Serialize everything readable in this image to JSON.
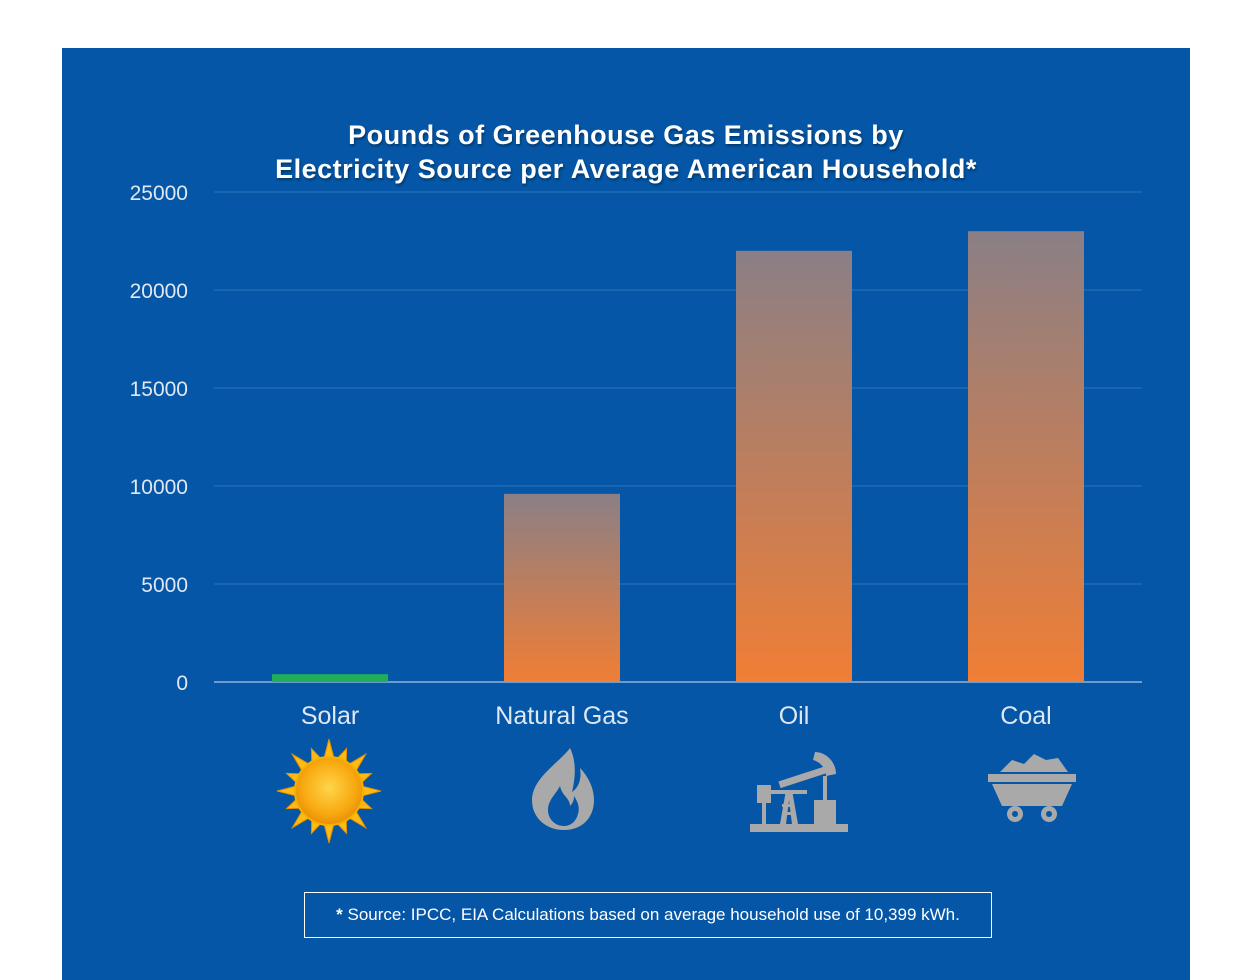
{
  "chart_data": {
    "type": "bar",
    "title_lines": [
      "Pounds of Greenhouse Gas Emissions by",
      "Electricity Source per Average American Household*"
    ],
    "categories": [
      "Solar",
      "Natural Gas",
      "Oil",
      "Coal"
    ],
    "values": [
      400,
      9600,
      22000,
      23000
    ],
    "ylim": [
      0,
      25000
    ],
    "yticks": [
      "0",
      "5000",
      "10000",
      "15000",
      "20000",
      "25000"
    ],
    "ytick_values": [
      0,
      5000,
      10000,
      15000,
      20000,
      25000
    ],
    "grid": true,
    "colors": {
      "background": "#0556a6",
      "solar_bar": "#1fae5b",
      "bar_top": "#8a7f86",
      "bar_bottom": "#f07e35",
      "grid": "#2f74bb",
      "icon_gray": "#a9a9a9",
      "sun": "#fdbb14"
    },
    "icons": [
      "sun-icon",
      "flame-icon",
      "oil-pump-icon",
      "coal-cart-icon"
    ]
  },
  "footnote": {
    "star": "*",
    "text": "Source:  IPCC, EIA Calculations based on average household use of 10,399 kWh."
  }
}
